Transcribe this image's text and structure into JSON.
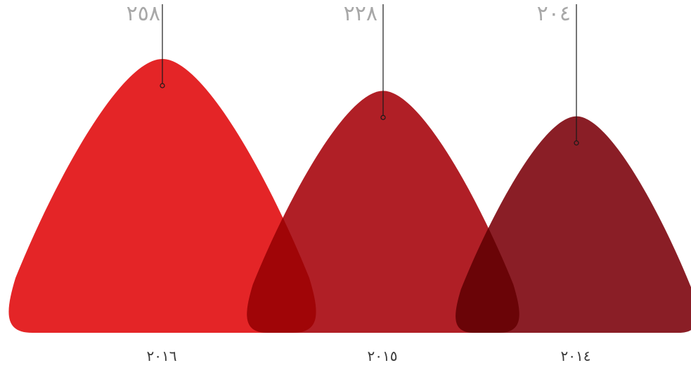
{
  "chart_data": {
    "type": "area",
    "categories": [
      "٢٠١٦",
      "٢٠١٥",
      "٢٠١٤"
    ],
    "values": [
      258,
      228,
      204
    ],
    "value_labels": [
      "٢٥٨",
      "٢٢٨",
      "٢٠٤"
    ],
    "colors": [
      "#e42527",
      "#b01f26",
      "#8a1e26"
    ],
    "overlap_colors": [
      "#a00507",
      "#6a0407"
    ],
    "title": "",
    "xlabel": "",
    "ylabel": ""
  }
}
